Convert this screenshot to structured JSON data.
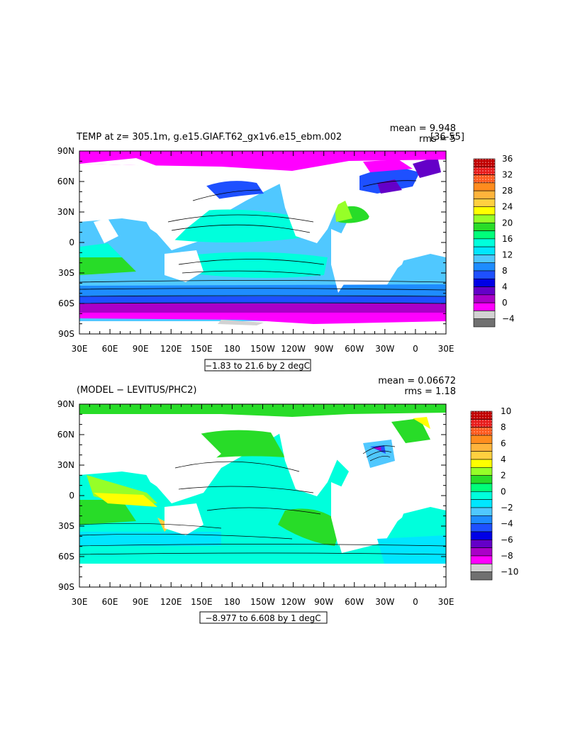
{
  "chart_data": [
    {
      "type": "heatmap",
      "title": "TEMP at z= 305.1m, g.e15.GIAF.T62_gx1v6.e15_ebm.002",
      "title_suffix": "[36-55]",
      "stats": {
        "mean": "mean = 9.948",
        "rms": "rms = 5"
      },
      "x_ticks": [
        "30E",
        "60E",
        "90E",
        "120E",
        "150E",
        "180",
        "150W",
        "120W",
        "90W",
        "60W",
        "30W",
        "0",
        "30E"
      ],
      "y_ticks": [
        "90N",
        "60N",
        "30N",
        "0",
        "30S",
        "60S",
        "90S"
      ],
      "range_label": "−1.83 to 21.6 by 2 degC",
      "colorbar": {
        "labels": [
          "36",
          "32",
          "28",
          "24",
          "20",
          "16",
          "12",
          "8",
          "4",
          "0",
          "−4"
        ],
        "colors": [
          "#c00000",
          "#e81c1c",
          "#ff5a1e",
          "#ff8c1e",
          "#ffb43c",
          "#ffd040",
          "#ffff00",
          "#96ff28",
          "#28dc28",
          "#00ff7a",
          "#00ffdc",
          "#00e6ff",
          "#50c8ff",
          "#1e8cff",
          "#1e50ff",
          "#0000e6",
          "#6400c8",
          "#aa00c8",
          "#ff00ff",
          "#d2d2d2",
          "#707070"
        ]
      }
    },
    {
      "type": "heatmap",
      "title": "(MODEL − LEVITUS/PHC2)",
      "stats": {
        "mean": "mean = 0.06672",
        "rms": "rms = 1.18"
      },
      "x_ticks": [
        "30E",
        "60E",
        "90E",
        "120E",
        "150E",
        "180",
        "150W",
        "120W",
        "90W",
        "60W",
        "30W",
        "0",
        "30E"
      ],
      "y_ticks": [
        "90N",
        "60N",
        "30N",
        "0",
        "30S",
        "60S",
        "90S"
      ],
      "range_label": "−8.977 to 6.608 by 1 degC",
      "colorbar": {
        "labels": [
          "10",
          "8",
          "6",
          "4",
          "2",
          "0",
          "−2",
          "−4",
          "−6",
          "−8",
          "−10"
        ],
        "colors": [
          "#c00000",
          "#e81c1c",
          "#ff5a1e",
          "#ff8c1e",
          "#ffb43c",
          "#ffd040",
          "#ffff00",
          "#96ff28",
          "#28dc28",
          "#00ff7a",
          "#00ffdc",
          "#00e6ff",
          "#50c8ff",
          "#1e8cff",
          "#1e50ff",
          "#0000e6",
          "#6400c8",
          "#aa00c8",
          "#ff00ff",
          "#d2d2d2",
          "#707070"
        ]
      }
    }
  ]
}
